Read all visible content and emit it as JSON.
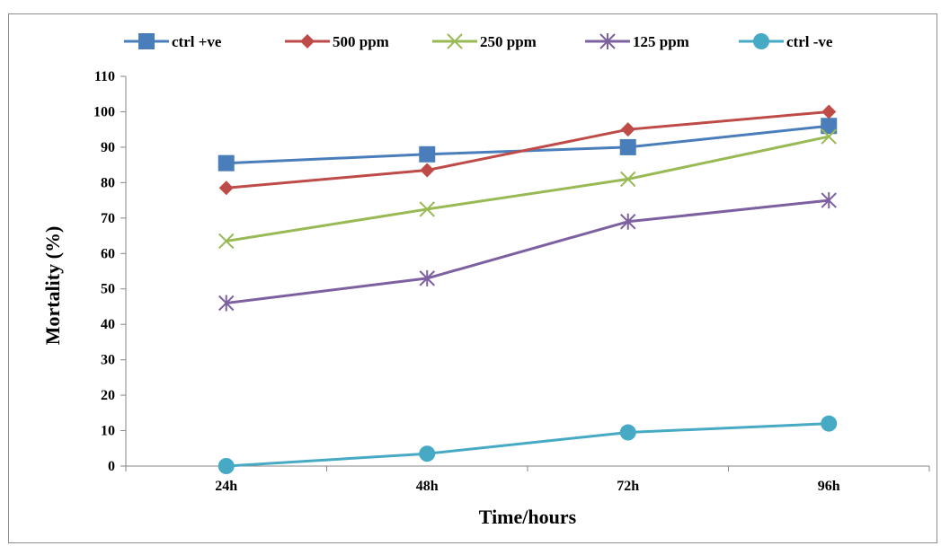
{
  "chart_data": {
    "type": "line",
    "categories": [
      "24h",
      "48h",
      "72h",
      "96h"
    ],
    "xlabel": "Time/hours",
    "ylabel": "Mortality (%)",
    "ylim": [
      0,
      110
    ],
    "yticks": [
      0,
      10,
      20,
      30,
      40,
      50,
      60,
      70,
      80,
      90,
      100,
      110
    ],
    "grid": false,
    "legend_position": "top",
    "series": [
      {
        "name": "ctrl +ve",
        "values": [
          85.5,
          88,
          90,
          96
        ],
        "color": "#4a7ebb",
        "marker": "square"
      },
      {
        "name": "500 ppm",
        "values": [
          78.5,
          83.5,
          95,
          100
        ],
        "color": "#be4b48",
        "marker": "diamond"
      },
      {
        "name": "250 ppm",
        "values": [
          63.5,
          72.5,
          81,
          93
        ],
        "color": "#98b954",
        "marker": "x"
      },
      {
        "name": "125 ppm",
        "values": [
          46,
          53,
          69,
          75
        ],
        "color": "#7d60a0",
        "marker": "star"
      },
      {
        "name": "ctrl -ve",
        "values": [
          0,
          3.5,
          9.5,
          12
        ],
        "color": "#46aac5",
        "marker": "circle"
      }
    ]
  }
}
